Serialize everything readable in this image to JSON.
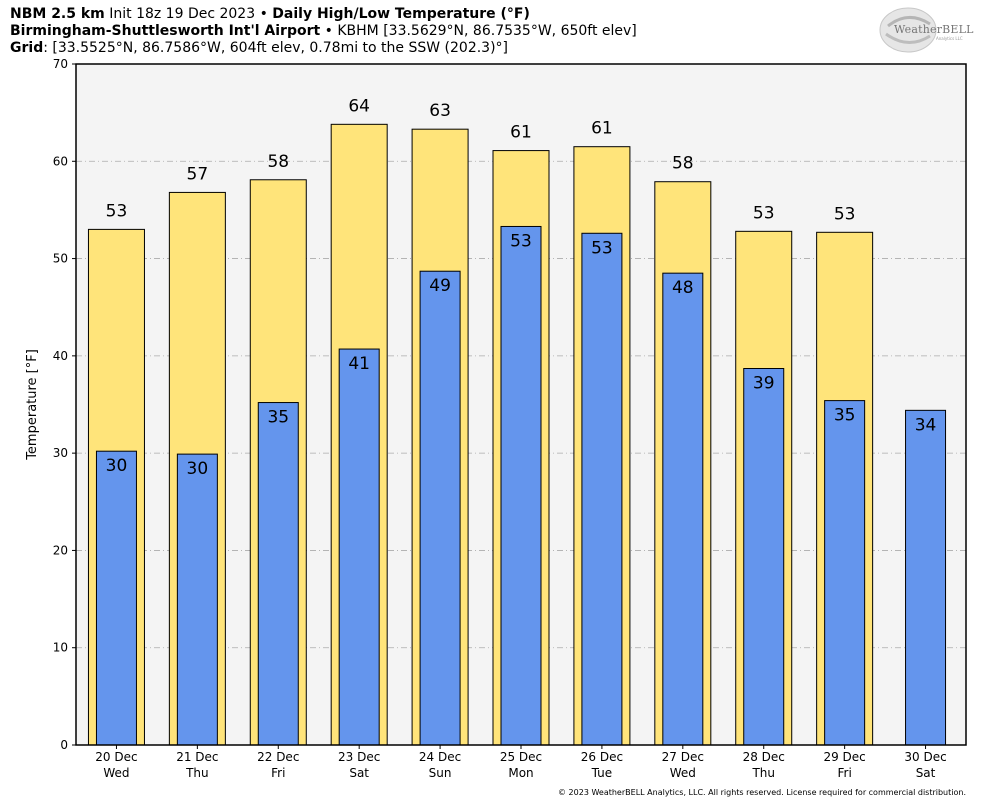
{
  "header": {
    "line1_model": "NBM 2.5 km",
    "line1_init": "Init 18z 19 Dec 2023",
    "line1_sep": "•",
    "line1_title": "Daily High/Low Temperature (°F)",
    "line2_station": "Birmingham-Shuttlesworth Int'l Airport",
    "line2_sep": "•",
    "line2_info": "KBHM [33.5629°N, 86.7535°W, 650ft elev]",
    "line3_label": "Grid",
    "line3_info": ": [33.5525°N, 86.7586°W, 604ft elev, 0.78mi to the SSW (202.3)°]"
  },
  "logo": {
    "text": "WeatherBELL",
    "sub": "Analytics LLC"
  },
  "footer": "© 2023 WeatherBELL Analytics, LLC. All rights reserved. License required for commercial distribution.",
  "colors": {
    "high": "#FFE47A",
    "low": "#6495ED",
    "plot_bg": "#F4F4F4",
    "grid": "#AAAAAA"
  },
  "chart_data": {
    "type": "bar",
    "ylabel": "Temperature [°F]",
    "xlabel": "",
    "ylim": [
      0,
      70
    ],
    "yticks": [
      0,
      10,
      20,
      30,
      40,
      50,
      60,
      70
    ],
    "grid": true,
    "categories": [
      {
        "date": "20 Dec",
        "day": "Wed"
      },
      {
        "date": "21 Dec",
        "day": "Thu"
      },
      {
        "date": "22 Dec",
        "day": "Fri"
      },
      {
        "date": "23 Dec",
        "day": "Sat"
      },
      {
        "date": "24 Dec",
        "day": "Sun"
      },
      {
        "date": "25 Dec",
        "day": "Mon"
      },
      {
        "date": "26 Dec",
        "day": "Tue"
      },
      {
        "date": "27 Dec",
        "day": "Wed"
      },
      {
        "date": "28 Dec",
        "day": "Thu"
      },
      {
        "date": "29 Dec",
        "day": "Fri"
      },
      {
        "date": "30 Dec",
        "day": "Sat"
      }
    ],
    "series": [
      {
        "values": [
          53,
          57,
          58,
          64,
          63,
          61,
          61,
          58,
          53,
          53,
          null
        ],
        "bar_values": [
          53.0,
          56.8,
          58.1,
          63.8,
          63.3,
          61.1,
          61.5,
          57.9,
          52.8,
          52.7,
          null
        ]
      },
      {
        "values": [
          30,
          30,
          35,
          41,
          49,
          53,
          53,
          48,
          39,
          35,
          34
        ],
        "bar_values": [
          30.2,
          29.9,
          35.2,
          40.7,
          48.7,
          53.3,
          52.6,
          48.5,
          38.7,
          35.4,
          34.4
        ]
      }
    ]
  }
}
